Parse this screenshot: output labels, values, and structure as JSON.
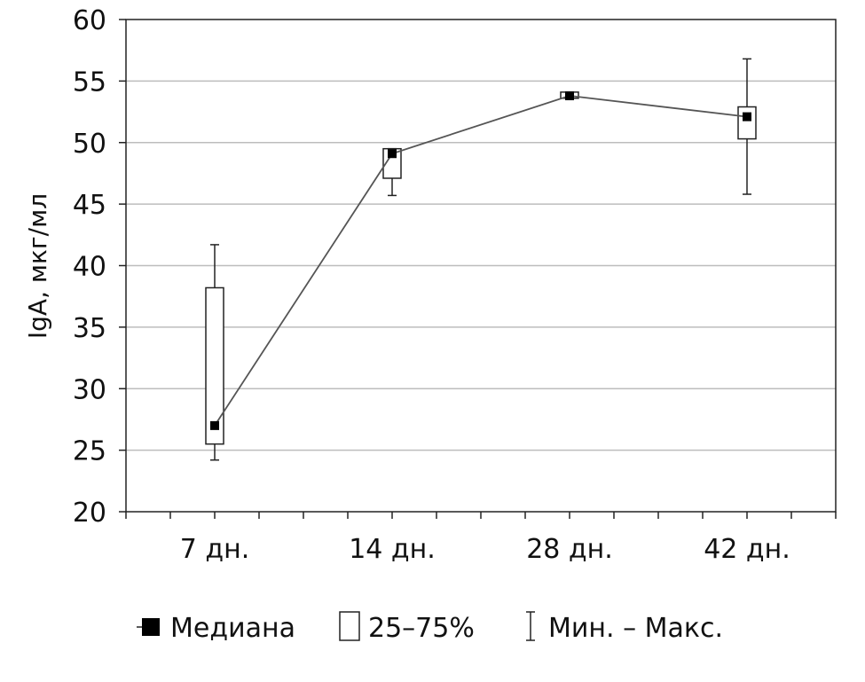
{
  "chart_data": {
    "type": "box",
    "title": "",
    "xlabel": "",
    "ylabel": "IgA, мкг/мл",
    "ylim": [
      20,
      60
    ],
    "yticks": [
      "20",
      "25",
      "30",
      "35",
      "40",
      "45",
      "50",
      "55",
      "60"
    ],
    "grid": true,
    "categories": [
      "7 дн.",
      "14 дн.",
      "28 дн.",
      "42 дн."
    ],
    "median": [
      27.0,
      49.1,
      53.8,
      52.1
    ],
    "q1": [
      25.5,
      47.1,
      53.6,
      50.3
    ],
    "q3": [
      38.2,
      49.5,
      54.1,
      52.9
    ],
    "min": [
      24.2,
      45.7,
      53.6,
      45.8
    ],
    "max": [
      41.7,
      49.5,
      54.1,
      56.8
    ],
    "legend": {
      "position": "bottom",
      "median_label": "Медиана",
      "box_label": "25–75%",
      "range_label": "Мин. – Макс."
    },
    "colors": {
      "line": "#555555",
      "marker": "#000000",
      "grid": "#bdbdbd"
    }
  }
}
